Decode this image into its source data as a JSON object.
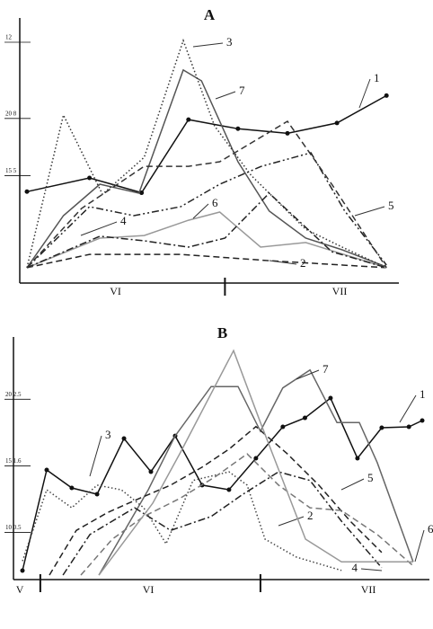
{
  "chart_data": [
    {
      "type": "line",
      "title": "A",
      "xlim": [
        0,
        14
      ],
      "xticks": [
        7.6
      ],
      "x_labels": [
        {
          "value": 3.4,
          "label": "VI"
        },
        {
          "value": 12.0,
          "label": "VII"
        }
      ],
      "ylim": [
        6,
        28
      ],
      "yticks": [
        {
          "value": 15,
          "label": "15 5"
        },
        {
          "value": 20,
          "label": "20 8"
        }
      ],
      "y2lim": [
        -0.4,
        12.8
      ],
      "y2ticks": [
        12
      ],
      "series": [
        {
          "name": "1",
          "color": "#111111",
          "style": "solid",
          "marker": true,
          "axis": "y",
          "x": [
            0,
            2.4,
            4.4,
            6.2,
            8.1,
            10,
            11.9,
            13.8
          ],
          "values": [
            13.6,
            14.8,
            13.5,
            19.9,
            19.1,
            18.7,
            19.6,
            22.0
          ]
        },
        {
          "name": "7",
          "color": "#555555",
          "style": "solid",
          "marker": false,
          "axis": "y2",
          "x": [
            0,
            1.4,
            2.8,
            4.3,
            6.0,
            6.7,
            8.1,
            9.3,
            10.7,
            12.1,
            13.8
          ],
          "values": [
            0.17,
            2.9,
            4.55,
            4.08,
            10.54,
            9.97,
            5.73,
            3.14,
            1.72,
            1.11,
            0.21
          ]
        },
        {
          "name": "3",
          "color": "#333333",
          "style": "dotted",
          "marker": false,
          "axis": "y2",
          "x": [
            0,
            1.4,
            2.9,
            4.5,
            6.0,
            7.2,
            8.6,
            10.7,
            12.1,
            13.8
          ],
          "values": [
            0.17,
            8.18,
            4.02,
            5.96,
            12.09,
            7.61,
            5.02,
            2.19,
            1.25,
            0.17
          ]
        },
        {
          "name": "5",
          "color": "#222222",
          "style": "dashdotdot",
          "marker": false,
          "axis": "y2",
          "x": [
            0,
            2.4,
            4.1,
            5.9,
            7.4,
            9.0,
            10.9,
            12.2,
            13.8
          ],
          "values": [
            0.17,
            3.37,
            2.9,
            3.37,
            4.55,
            5.49,
            6.2,
            3.14,
            0.31
          ]
        },
        {
          "name": "2",
          "color": "#222222",
          "style": "dashed",
          "marker": false,
          "axis": "y2",
          "x": [
            0,
            2.4,
            5.9,
            9.3,
            13.8
          ],
          "values": [
            0.17,
            0.87,
            0.87,
            0.54,
            0.17
          ]
        },
        {
          "name": "6",
          "color": "#999999",
          "style": "solid",
          "marker": false,
          "axis": "y2",
          "x": [
            0,
            2.8,
            4.5,
            6.2,
            7.4,
            8.97,
            10.7,
            13.8
          ],
          "values": [
            0.17,
            1.72,
            1.86,
            2.66,
            3.09,
            1.25,
            1.49,
            0.17
          ]
        },
        {
          "name": "4",
          "color": "#222222",
          "style": "dashdot",
          "marker": false,
          "axis": "y2",
          "x": [
            0,
            2.8,
            4.5,
            6.2,
            7.6,
            9.3,
            11.7,
            13.8
          ],
          "values": [
            0.17,
            1.82,
            1.58,
            1.25,
            1.72,
            4.08,
            1.01,
            0.17
          ]
        },
        {
          "name": "",
          "color": "#333333",
          "style": "dashed",
          "marker": false,
          "axis": "y2",
          "x": [
            0,
            2.1,
            4.5,
            6.2,
            7.4,
            10,
            11.7,
            13.8
          ],
          "values": [
            0.17,
            3.28,
            5.49,
            5.49,
            5.73,
            7.85,
            4.55,
            0.17
          ]
        }
      ]
    },
    {
      "type": "line",
      "title": "B",
      "xlim": [
        0,
        15
      ],
      "xticks": [
        0.67,
        8.93
      ],
      "x_labels": [
        {
          "value": -0.1,
          "label": "V"
        },
        {
          "value": 4.72,
          "label": "VI"
        },
        {
          "value": 12.98,
          "label": "VII"
        }
      ],
      "ylim": [
        6.8,
        24
      ],
      "yticks": [
        {
          "value": 10,
          "label": "10 0.5"
        },
        {
          "value": 15,
          "label": "15 1.6"
        },
        {
          "value": 20,
          "label": "20 2.5"
        }
      ],
      "y2lim": [
        -0.14,
        3.3
      ],
      "y2ticks": [],
      "series": [
        {
          "name": "1",
          "color": "#111111",
          "style": "solid",
          "marker": true,
          "axis": "y",
          "x": [
            0,
            0.91,
            1.85,
            2.8,
            3.81,
            4.82,
            5.73,
            6.74,
            7.75,
            8.76,
            9.77,
            10.6,
            11.56,
            12.57,
            13.48,
            14.5,
            15
          ],
          "values": [
            7.14,
            14.69,
            13.34,
            12.87,
            17.05,
            14.56,
            17.25,
            13.55,
            13.21,
            15.57,
            17.93,
            18.6,
            20.09,
            15.57,
            17.86,
            17.93,
            18.4
          ]
        },
        {
          "name": "7",
          "color": "#666666",
          "style": "solid",
          "marker": false,
          "axis": "y2",
          "x": [
            2.87,
            4.72,
            5.73,
            7.08,
            8.09,
            8.93,
            9.77,
            10.79,
            11.8,
            12.64,
            13.31,
            14.66
          ],
          "values": [
            -0.14,
            1.14,
            1.95,
            2.69,
            2.69,
            2.02,
            2.67,
            2.94,
            2.15,
            2.15,
            1.55,
            0.06
          ]
        },
        {
          "name": "3",
          "color": "#444444",
          "style": "dotted",
          "marker": false,
          "axis": "y2",
          "x": [
            0,
            0.91,
            1.85,
            2.8,
            3.71,
            4.55,
            5.39,
            6.4,
            7.75,
            8.43,
            9.1,
            10.28,
            11.97
          ],
          "values": [
            0.07,
            1.14,
            0.87,
            1.21,
            1.14,
            0.87,
            0.33,
            1.28,
            1.41,
            1.21,
            0.4,
            0.13,
            -0.07
          ]
        },
        {
          "name": "2",
          "color": "#222222",
          "style": "dashed",
          "marker": false,
          "axis": "y2",
          "x": [
            1.01,
            2.02,
            3.2,
            4.38,
            5.56,
            6.74,
            7.75,
            8.76,
            9.94,
            11.12,
            12.3,
            13.48
          ],
          "values": [
            -0.14,
            0.53,
            0.8,
            1.01,
            1.21,
            1.48,
            1.75,
            2.09,
            1.68,
            1.21,
            0.67,
            0.2
          ]
        },
        {
          "name": "4",
          "color": "#222222",
          "style": "dashdot",
          "marker": false,
          "axis": "y2",
          "x": [
            1.52,
            2.53,
            4.21,
            5.56,
            7.08,
            8.26,
            9.61,
            10.79,
            11.97,
            13.48
          ],
          "values": [
            -0.14,
            0.47,
            0.87,
            0.53,
            0.74,
            1.07,
            1.41,
            1.28,
            0.67,
            -0.03
          ]
        },
        {
          "name": "5",
          "color": "#777777",
          "style": "dashed",
          "marker": false,
          "axis": "y2",
          "x": [
            2.19,
            3.37,
            4.55,
            5.9,
            7.25,
            8.43,
            9.61,
            10.79,
            11.97,
            13.31,
            14.66
          ],
          "values": [
            -0.14,
            0.4,
            0.74,
            1.01,
            1.34,
            1.68,
            1.21,
            0.87,
            0.83,
            0.47,
            0
          ]
        },
        {
          "name": "6",
          "color": "#999999",
          "style": "solid",
          "marker": false,
          "axis": "y2",
          "x": [
            2.87,
            4.89,
            5.9,
            7.92,
            8.93,
            10.62,
            11.97,
            14.66
          ],
          "values": [
            -0.14,
            0.94,
            1.68,
            3.23,
            2.15,
            0.4,
            0.06,
            0.06
          ]
        }
      ]
    }
  ]
}
